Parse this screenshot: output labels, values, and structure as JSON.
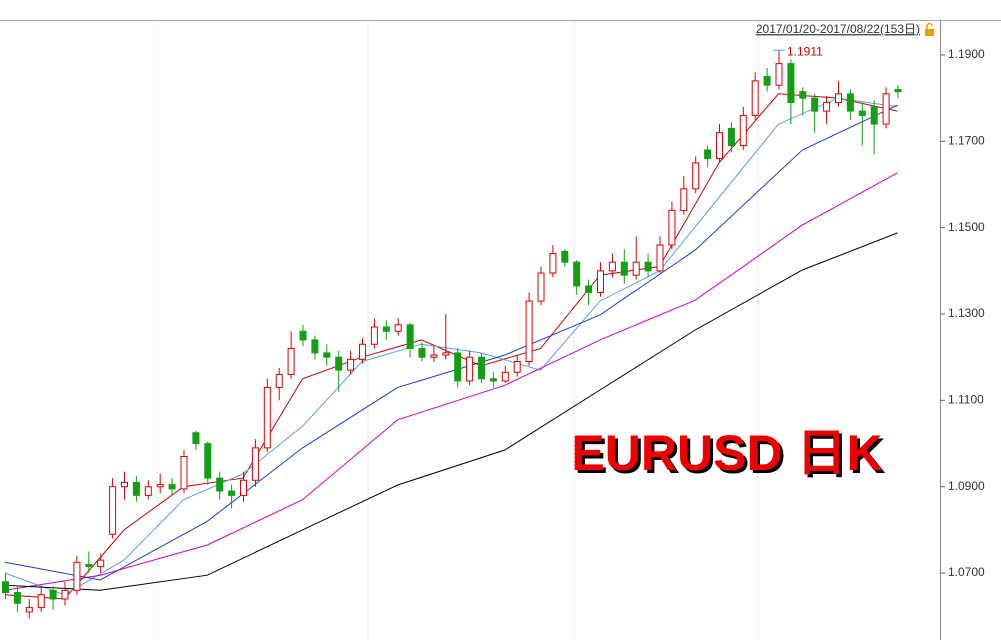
{
  "chart_data": {
    "type": "candlestick",
    "header": "2017/01/20-2017/08/22(153日)",
    "annotation": "EURUSD 日K",
    "high_label": {
      "value": 1.1911,
      "label": "1.1911"
    },
    "up_color": "#dd0000",
    "down_color": "#12a012",
    "ylim": [
      1.0545,
      1.1981
    ],
    "yticks": [
      {
        "value": 1.07,
        "label": "1.0700"
      },
      {
        "value": 1.09,
        "label": "1.0900"
      },
      {
        "value": 1.11,
        "label": "1.1100"
      },
      {
        "value": 1.13,
        "label": "1.1300"
      },
      {
        "value": 1.15,
        "label": "1.1500"
      },
      {
        "value": 1.17,
        "label": "1.1700"
      },
      {
        "value": 1.19,
        "label": "1.1900"
      }
    ],
    "ohlc": [
      [
        1.068,
        1.07,
        1.064,
        1.0655
      ],
      [
        1.0655,
        1.067,
        1.061,
        1.063
      ],
      [
        1.061,
        1.064,
        1.0595,
        1.062
      ],
      [
        1.062,
        1.067,
        1.061,
        1.065
      ],
      [
        1.066,
        1.067,
        1.0615,
        1.064
      ],
      [
        1.064,
        1.068,
        1.0625,
        1.066
      ],
      [
        1.066,
        1.074,
        1.065,
        1.0725
      ],
      [
        1.072,
        1.075,
        1.07,
        1.0715
      ],
      [
        1.0715,
        1.0745,
        1.07,
        1.073
      ],
      [
        1.079,
        1.092,
        1.078,
        1.09
      ],
      [
        1.09,
        1.0935,
        1.087,
        1.091
      ],
      [
        1.091,
        1.0925,
        1.0865,
        1.088
      ],
      [
        1.088,
        1.0915,
        1.087,
        1.09
      ],
      [
        1.09,
        1.093,
        1.0885,
        1.0905
      ],
      [
        1.0905,
        1.092,
        1.088,
        1.0895
      ],
      [
        1.0895,
        1.0985,
        1.0885,
        1.097
      ],
      [
        1.1025,
        1.103,
        1.0985,
        1.1
      ],
      [
        1.1,
        1.1005,
        1.0905,
        1.092
      ],
      [
        1.092,
        1.0935,
        1.087,
        1.089
      ],
      [
        1.089,
        1.0905,
        1.085,
        1.088
      ],
      [
        1.088,
        1.0935,
        1.0865,
        1.0915
      ],
      [
        1.0915,
        1.101,
        1.09,
        1.099
      ],
      [
        1.099,
        1.115,
        1.098,
        1.113
      ],
      [
        1.113,
        1.1175,
        1.11,
        1.116
      ],
      [
        1.116,
        1.126,
        1.115,
        1.122
      ],
      [
        1.126,
        1.1275,
        1.1225,
        1.124
      ],
      [
        1.124,
        1.125,
        1.1195,
        1.121
      ],
      [
        1.121,
        1.123,
        1.118,
        1.12
      ],
      [
        1.12,
        1.1215,
        1.112,
        1.117
      ],
      [
        1.117,
        1.1215,
        1.116,
        1.1195
      ],
      [
        1.1195,
        1.1245,
        1.1185,
        1.123
      ],
      [
        1.123,
        1.129,
        1.122,
        1.127
      ],
      [
        1.127,
        1.1285,
        1.124,
        1.126
      ],
      [
        1.126,
        1.129,
        1.125,
        1.1275
      ],
      [
        1.1275,
        1.128,
        1.12,
        1.122
      ],
      [
        1.122,
        1.1235,
        1.119,
        1.12
      ],
      [
        1.12,
        1.1225,
        1.119,
        1.1205
      ],
      [
        1.1205,
        1.13,
        1.1195,
        1.121
      ],
      [
        1.121,
        1.122,
        1.113,
        1.1145
      ],
      [
        1.1145,
        1.1215,
        1.1135,
        1.12
      ],
      [
        1.12,
        1.121,
        1.114,
        1.115
      ],
      [
        1.115,
        1.1165,
        1.113,
        1.1145
      ],
      [
        1.1145,
        1.118,
        1.114,
        1.1165
      ],
      [
        1.1165,
        1.1205,
        1.1155,
        1.119
      ],
      [
        1.119,
        1.135,
        1.118,
        1.133
      ],
      [
        1.133,
        1.141,
        1.132,
        1.1395
      ],
      [
        1.1395,
        1.146,
        1.1385,
        1.144
      ],
      [
        1.1445,
        1.145,
        1.141,
        1.142
      ],
      [
        1.142,
        1.1425,
        1.1345,
        1.1365
      ],
      [
        1.1365,
        1.138,
        1.132,
        1.135
      ],
      [
        1.135,
        1.142,
        1.134,
        1.14
      ],
      [
        1.14,
        1.144,
        1.1385,
        1.142
      ],
      [
        1.142,
        1.145,
        1.137,
        1.139
      ],
      [
        1.139,
        1.148,
        1.138,
        1.142
      ],
      [
        1.142,
        1.144,
        1.1385,
        1.14
      ],
      [
        1.14,
        1.148,
        1.1395,
        1.146
      ],
      [
        1.146,
        1.156,
        1.145,
        1.154
      ],
      [
        1.154,
        1.162,
        1.153,
        1.159
      ],
      [
        1.159,
        1.1665,
        1.158,
        1.165
      ],
      [
        1.168,
        1.169,
        1.164,
        1.166
      ],
      [
        1.166,
        1.174,
        1.165,
        1.172
      ],
      [
        1.173,
        1.1745,
        1.1675,
        1.169
      ],
      [
        1.169,
        1.178,
        1.168,
        1.176
      ],
      [
        1.176,
        1.186,
        1.175,
        1.184
      ],
      [
        1.185,
        1.187,
        1.1815,
        1.183
      ],
      [
        1.183,
        1.1911,
        1.182,
        1.188
      ],
      [
        1.188,
        1.189,
        1.174,
        1.179
      ],
      [
        1.1815,
        1.1825,
        1.176,
        1.18
      ],
      [
        1.18,
        1.181,
        1.172,
        1.177
      ],
      [
        1.177,
        1.1805,
        1.174,
        1.179
      ],
      [
        1.179,
        1.184,
        1.178,
        1.181
      ],
      [
        1.181,
        1.182,
        1.175,
        1.177
      ],
      [
        1.177,
        1.179,
        1.169,
        1.176
      ],
      [
        1.178,
        1.1795,
        1.167,
        1.174
      ],
      [
        1.174,
        1.1825,
        1.173,
        1.181
      ],
      [
        1.182,
        1.183,
        1.18,
        1.1815
      ]
    ],
    "lines": [
      {
        "color": "#cc0000",
        "x": [
          0,
          5,
          10,
          15,
          20,
          25,
          30,
          35,
          40,
          45,
          50,
          55,
          60,
          65,
          70,
          75
        ],
        "values": [
          1.065,
          1.064,
          1.08,
          1.09,
          1.092,
          1.115,
          1.12,
          1.124,
          1.118,
          1.122,
          1.139,
          1.141,
          1.165,
          1.181,
          1.18,
          1.177
        ]
      },
      {
        "color": "#5aa0dc",
        "x": [
          0,
          5,
          10,
          15,
          20,
          25,
          30,
          35,
          40,
          45,
          50,
          55,
          60,
          65,
          70,
          75
        ],
        "values": [
          1.07,
          1.065,
          1.073,
          1.087,
          1.093,
          1.104,
          1.119,
          1.123,
          1.121,
          1.117,
          1.133,
          1.14,
          1.157,
          1.174,
          1.18,
          1.178
        ]
      },
      {
        "color": "#1a3fd0",
        "x": [
          0,
          8,
          17,
          25,
          33,
          42,
          50,
          58,
          67,
          75
        ],
        "values": [
          1.0725,
          1.0684,
          1.082,
          1.099,
          1.113,
          1.1205,
          1.1298,
          1.1448,
          1.168,
          1.1784
        ]
      },
      {
        "color": "#cc00cc",
        "x": [
          0,
          8,
          17,
          25,
          33,
          42,
          50,
          58,
          67,
          75
        ],
        "values": [
          1.066,
          1.0695,
          1.0765,
          1.087,
          1.1055,
          1.1135,
          1.124,
          1.1332,
          1.1506,
          1.1627
        ]
      },
      {
        "color": "#000000",
        "x": [
          0,
          8,
          17,
          25,
          33,
          42,
          50,
          58,
          67,
          75
        ],
        "values": [
          1.0672,
          1.066,
          1.0695,
          1.08,
          1.0904,
          1.0985,
          1.1124,
          1.1263,
          1.1402,
          1.1488
        ]
      }
    ]
  }
}
